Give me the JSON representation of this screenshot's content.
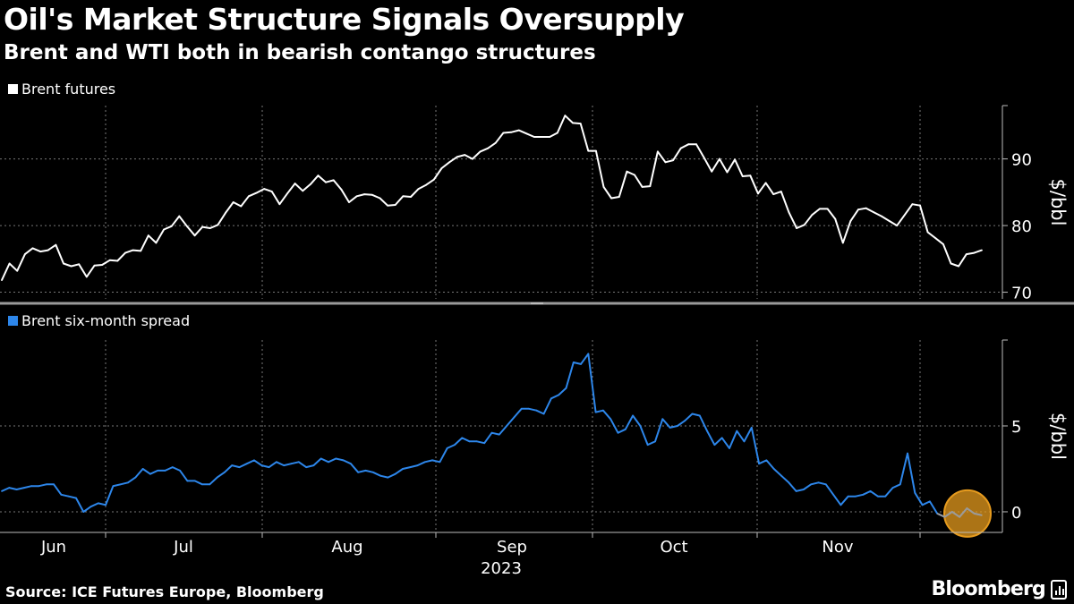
{
  "header": {
    "title": "Oil's Market Structure Signals Oversupply",
    "subtitle": "Brent and WTI both in bearish contango structures"
  },
  "footer": {
    "source": "Source: ICE Futures Europe, Bloomberg",
    "brand": "Bloomberg",
    "brand_icon": "bloomberg-logo-icon"
  },
  "colors": {
    "background": "#000000",
    "top_series": "#ffffff",
    "bottom_series": "#2d86ea",
    "highlight": "#e69b1e",
    "grid": "#777777"
  },
  "chart_data": [
    {
      "type": "line",
      "legend_position": "top-left",
      "grid": true,
      "ylabel": "$/bbl",
      "ylim": [
        69,
        98
      ],
      "yticks": [
        70,
        80,
        90
      ],
      "series": [
        {
          "name": "Brent futures",
          "values": [
            71.8,
            74.3,
            73.2,
            75.7,
            76.6,
            76.1,
            76.3,
            77.1,
            74.3,
            73.9,
            74.2,
            72.3,
            74.0,
            74.1,
            74.8,
            74.7,
            75.9,
            76.3,
            76.2,
            78.5,
            77.4,
            79.4,
            79.9,
            81.4,
            79.9,
            78.5,
            79.8,
            79.6,
            80.1,
            81.9,
            83.5,
            82.9,
            84.4,
            84.9,
            85.5,
            85.1,
            83.2,
            84.8,
            86.3,
            85.2,
            86.2,
            87.5,
            86.5,
            86.8,
            85.4,
            83.5,
            84.4,
            84.7,
            84.6,
            84.1,
            83.0,
            83.1,
            84.4,
            84.3,
            85.5,
            86.1,
            86.9,
            88.6,
            89.5,
            90.3,
            90.6,
            90.0,
            91.1,
            91.6,
            92.4,
            93.9,
            94.0,
            94.3,
            93.8,
            93.3,
            93.3,
            93.3,
            93.9,
            96.5,
            95.4,
            95.3,
            91.2,
            91.2,
            85.8,
            84.1,
            84.3,
            88.1,
            87.6,
            85.8,
            85.9,
            91.1,
            89.5,
            89.8,
            91.6,
            92.2,
            92.2,
            90.2,
            88.1,
            90.0,
            88.0,
            89.9,
            87.4,
            87.5,
            84.8,
            86.4,
            84.7,
            85.1,
            82.0,
            79.6,
            80.1,
            81.6,
            82.5,
            82.5,
            81.0,
            77.4,
            80.7,
            82.4,
            82.6,
            82.0,
            81.4,
            80.7,
            80.0,
            81.6,
            83.2,
            83.0,
            79.0,
            78.1,
            77.2,
            74.3,
            73.9,
            75.7,
            75.9,
            76.3
          ]
        }
      ]
    },
    {
      "type": "line",
      "legend_position": "top-left",
      "grid": true,
      "ylabel": "$/bbl",
      "ylim": [
        -1.2,
        10
      ],
      "yticks": [
        0,
        5
      ],
      "x_axis": {
        "tick_labels": [
          "Jun",
          "Jul",
          "Aug",
          "Sep",
          "Oct",
          "Nov"
        ],
        "year_label": "2023"
      },
      "series": [
        {
          "name": "Brent six-month spread",
          "values": [
            1.2,
            1.4,
            1.3,
            1.4,
            1.5,
            1.5,
            1.6,
            1.6,
            1.0,
            0.9,
            0.8,
            0.0,
            0.3,
            0.5,
            0.4,
            1.5,
            1.6,
            1.7,
            2.0,
            2.5,
            2.2,
            2.4,
            2.4,
            2.6,
            2.4,
            1.8,
            1.8,
            1.6,
            1.6,
            2.0,
            2.3,
            2.7,
            2.6,
            2.8,
            3.0,
            2.7,
            2.6,
            2.9,
            2.7,
            2.8,
            2.9,
            2.6,
            2.7,
            3.1,
            2.9,
            3.1,
            3.0,
            2.8,
            2.3,
            2.4,
            2.3,
            2.1,
            2.0,
            2.2,
            2.5,
            2.6,
            2.7,
            2.9,
            3.0,
            2.9,
            3.7,
            3.9,
            4.3,
            4.1,
            4.1,
            4.0,
            4.6,
            4.5,
            5.0,
            5.5,
            6.0,
            6.0,
            5.9,
            5.7,
            6.6,
            6.8,
            7.2,
            8.7,
            8.6,
            9.2,
            5.8,
            5.9,
            5.4,
            4.6,
            4.8,
            5.6,
            5.0,
            3.9,
            4.1,
            5.4,
            4.9,
            5.0,
            5.3,
            5.7,
            5.6,
            4.7,
            3.9,
            4.3,
            3.7,
            4.7,
            4.1,
            4.9,
            2.8,
            3.0,
            2.5,
            2.1,
            1.7,
            1.2,
            1.3,
            1.6,
            1.7,
            1.6,
            1.0,
            0.4,
            0.9,
            0.9,
            1.0,
            1.2,
            0.9,
            0.9,
            1.4,
            1.6,
            3.4,
            1.1,
            0.4,
            0.6,
            -0.1,
            -0.3,
            0.0,
            -0.3,
            0.2,
            -0.1,
            -0.2
          ]
        }
      ]
    }
  ]
}
